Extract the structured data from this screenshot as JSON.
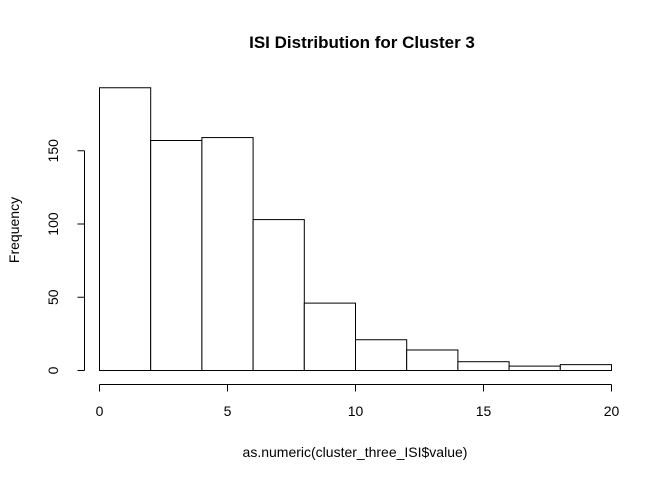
{
  "chart_data": {
    "type": "bar",
    "subtype": "histogram",
    "title": "ISI Distribution for Cluster 3",
    "xlabel": "as.numeric(cluster_three_ISI$value)",
    "ylabel": "Frequency",
    "bins": [
      {
        "start": 0,
        "end": 2,
        "count": 193
      },
      {
        "start": 2,
        "end": 4,
        "count": 157
      },
      {
        "start": 4,
        "end": 6,
        "count": 159
      },
      {
        "start": 6,
        "end": 8,
        "count": 103
      },
      {
        "start": 8,
        "end": 10,
        "count": 46
      },
      {
        "start": 10,
        "end": 12,
        "count": 21
      },
      {
        "start": 12,
        "end": 14,
        "count": 14
      },
      {
        "start": 14,
        "end": 16,
        "count": 6
      },
      {
        "start": 16,
        "end": 18,
        "count": 3
      },
      {
        "start": 18,
        "end": 20,
        "count": 4
      }
    ],
    "xticks": [
      0,
      5,
      10,
      15,
      20
    ],
    "yticks": [
      0,
      50,
      100,
      150
    ],
    "xlim": [
      0,
      20
    ],
    "ylim": [
      0,
      200
    ],
    "grid": false,
    "legend": "none"
  }
}
